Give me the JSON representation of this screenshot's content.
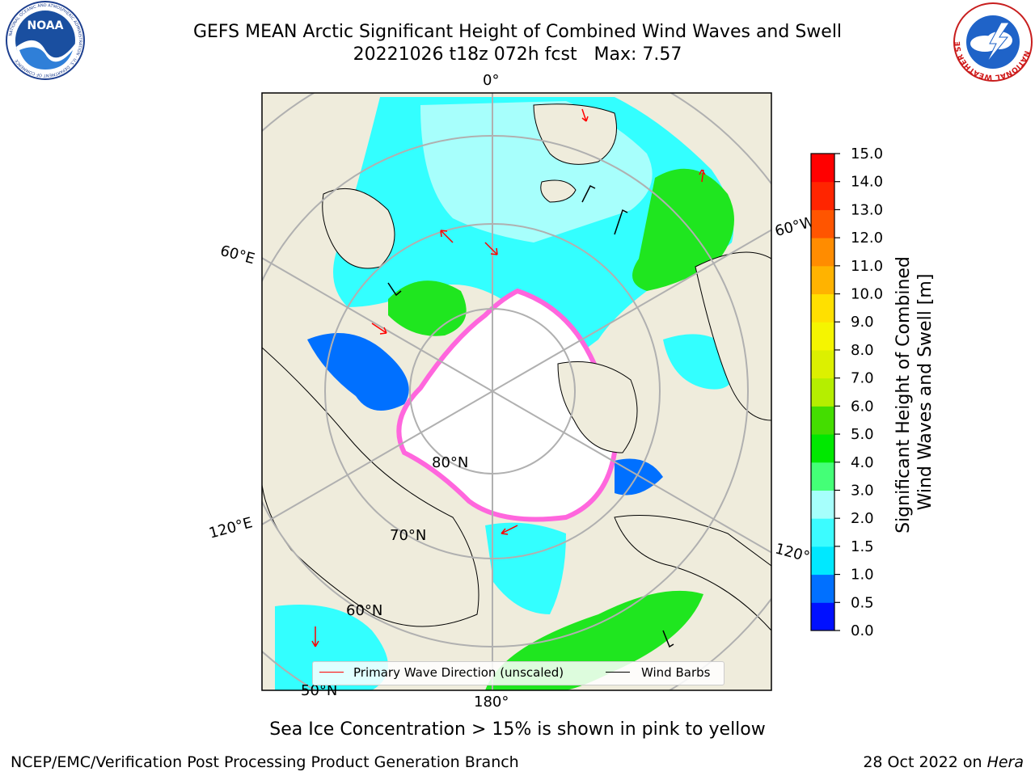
{
  "header": {
    "title_line1": "GEFS MEAN Arctic Significant Height of Combined Wind Waves and Swell",
    "title_line2": "20221026 t18z 072h fcst   Max: 7.57"
  },
  "logos": {
    "noaa_text": "NOAA",
    "noaa_ring_text": "NATIONAL OCEANIC AND ATMOSPHERIC ADMINISTRATION · U.S. DEPARTMENT OF COMMERCE",
    "nws_ring_text": "NATIONAL WEATHER SERVICE"
  },
  "map": {
    "projection": "north-polar-stereographic",
    "lon_labels": [
      "0°",
      "60°W",
      "120°W",
      "180°",
      "120°E",
      "60°E"
    ],
    "lat_labels": [
      "80°N",
      "70°N",
      "60°N",
      "50°N"
    ],
    "colors": {
      "land": "#efecdc",
      "sea_ice_open": "#ffffff",
      "wave_low": "#33ffff",
      "wave_mid": "#a7fffc",
      "wave_green": "#1fe61f",
      "ice_edge_pink": "#ff66dd",
      "wave_dir_arrow": "#ff0000",
      "wind_barb": "#000000"
    }
  },
  "legend": {
    "wave_direction_label": "Primary Wave Direction (unscaled)",
    "wind_barbs_label": "Wind Barbs"
  },
  "chart_data": {
    "type": "heatmap",
    "title": "GEFS MEAN Arctic Significant Height of Combined Wind Waves and Swell",
    "subtitle": "20221026 t18z 072h fcst   Max: 7.57",
    "max_value": 7.57,
    "colorbar": {
      "label": "Significant Height of Combined\nWind Waves and Swell [m]",
      "ticks": [
        "0.0",
        "0.5",
        "1.0",
        "1.5",
        "2.0",
        "3.0",
        "4.0",
        "5.0",
        "6.0",
        "7.0",
        "8.0",
        "9.0",
        "10.0",
        "11.0",
        "12.0",
        "13.0",
        "14.0",
        "15.0"
      ],
      "levels": [
        0,
        0.5,
        1.0,
        1.5,
        2.0,
        3.0,
        4.0,
        5.0,
        6.0,
        7.0,
        8.0,
        9.0,
        10.0,
        11.0,
        12.0,
        13.0,
        14.0,
        15.0
      ],
      "bin_colors": [
        "#0010ff",
        "#0070ff",
        "#00e8ff",
        "#3cfcff",
        "#a6fffc",
        "#44ff77",
        "#00e800",
        "#44dd00",
        "#b5ee00",
        "#dcf000",
        "#f5f500",
        "#ffe000",
        "#ffb300",
        "#ff8c00",
        "#ff5500",
        "#ff2500",
        "#ff0000"
      ]
    },
    "annotation": "Sea Ice Concentration > 15% is shown in pink to yellow"
  },
  "footer": {
    "left": "NCEP/EMC/Verification Post Processing Product Generation Branch",
    "right_prefix": "28 Oct 2022 on ",
    "right_host": "Hera"
  }
}
